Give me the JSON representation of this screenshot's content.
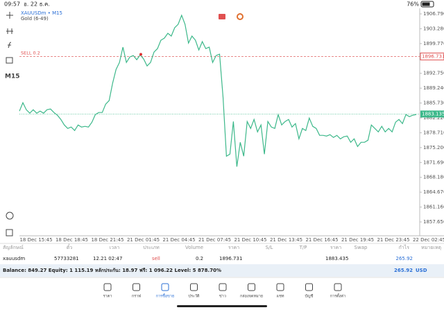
{
  "status_bar": {
    "time": "09:57",
    "date": "อ. 22 ธ.ค.",
    "battery": "76%"
  },
  "chart": {
    "type": "line",
    "symbol": "XAUUSDm • M15",
    "name": "Gold (6-49)",
    "timeframe": "M15",
    "color": "#3cb88a",
    "ylim": [
      1854.7,
      1908.1
    ],
    "yticks": [
      {
        "value": 1906.79,
        "label": "1906.790"
      },
      {
        "value": 1903.28,
        "label": "1903.280"
      },
      {
        "value": 1899.77,
        "label": "1899.770"
      },
      {
        "value": 1892.75,
        "label": "1892.750"
      },
      {
        "value": 1889.24,
        "label": "1889.240"
      },
      {
        "value": 1885.73,
        "label": "1885.730"
      },
      {
        "value": 1882.22,
        "label": "1882.220"
      },
      {
        "value": 1878.71,
        "label": "1878.710"
      },
      {
        "value": 1875.2,
        "label": "1875.200"
      },
      {
        "value": 1871.69,
        "label": "1871.690"
      },
      {
        "value": 1868.18,
        "label": "1868.180"
      },
      {
        "value": 1864.67,
        "label": "1864.670"
      },
      {
        "value": 1861.16,
        "label": "1861.160"
      },
      {
        "value": 1857.65,
        "label": "1857.650"
      }
    ],
    "xlabels": [
      "18 Dec 15:45",
      "18 Dec 18:45",
      "18 Dec 21:45",
      "21 Dec 01:45",
      "21 Dec 04:45",
      "21 Dec 07:45",
      "21 Dec 10:45",
      "21 Dec 13:45",
      "21 Dec 16:45",
      "21 Dec 19:45",
      "21 Dec 23:45",
      "22 Dec 02:45"
    ],
    "sell_line": {
      "value": 1896.731,
      "label": "SELL 0.2"
    },
    "bid_line": {
      "value": 1883.135
    },
    "values": [
      1883.83,
      1885.8,
      1884.16,
      1883.34,
      1884.16,
      1883.34,
      1883.83,
      1883.34,
      1884.16,
      1884.32,
      1883.5,
      1882.85,
      1881.86,
      1880.55,
      1879.73,
      1880.06,
      1879.24,
      1880.55,
      1880.06,
      1880.22,
      1880.06,
      1881.21,
      1883.01,
      1883.5,
      1883.5,
      1885.47,
      1886.29,
      1890.39,
      1893.67,
      1895.31,
      1898.92,
      1895.31,
      1896.62,
      1896.95,
      1895.97,
      1897.11,
      1896.13,
      1894.49,
      1895.31,
      1897.77,
      1898.59,
      1900.56,
      1901.05,
      1902.2,
      1901.54,
      1903.51,
      1904.33,
      1906.46,
      1904.33,
      1899.9,
      1901.54,
      1900.56,
      1898.26,
      1900.23,
      1898.59,
      1898.92,
      1895.31,
      1896.95,
      1897.28,
      1887.11,
      1873.17,
      1873.66,
      1881.37,
      1870.71,
      1876.45,
      1873.17,
      1881.37,
      1879.73,
      1881.86,
      1878.91,
      1880.55,
      1873.66,
      1881.37,
      1880.06,
      1879.73,
      1883.01,
      1880.55,
      1881.37,
      1881.86,
      1880.06,
      1880.88,
      1877.27,
      1879.73,
      1879.24,
      1882.19,
      1880.22,
      1879.73,
      1878.09,
      1878.09,
      1877.93,
      1878.25,
      1877.6,
      1878.09,
      1877.27,
      1877.76,
      1877.93,
      1876.45,
      1877.27,
      1875.47,
      1876.45,
      1876.45,
      1876.94,
      1880.55,
      1879.73,
      1878.91,
      1880.22,
      1878.91,
      1879.73,
      1878.91,
      1881.21,
      1881.86,
      1880.88,
      1883.01,
      1882.52,
      1882.85,
      1883.01
    ]
  },
  "table": {
    "headers": [
      "สัญลักษณ์",
      "ตั๋ว",
      "เวลา",
      "ประเภท",
      "Volume",
      "ราคา",
      "S/L",
      "T/P",
      "ราคา",
      "Swap",
      "กำไร",
      "หมายเหตุ"
    ],
    "row": [
      "xauusdm",
      "57733281",
      "12.21 02:47",
      "sell",
      "0.2",
      "1896.731",
      "",
      "",
      "1883.435",
      "",
      "265.92",
      ""
    ]
  },
  "summary": {
    "text": "Balance: 849.27 Equity: 1 115.19 หลักประกัน: 18.97 ฟรี: 1 096.22 Level: 5 878.70%",
    "profit": "265.92",
    "currency": "USD"
  },
  "nav": [
    "ราคา",
    "กราฟ",
    "การซื้อขาย",
    "ประวัติ",
    "ข่าว",
    "กล่องจดหมาย",
    "แชท",
    "บัญชี",
    "การตั้งค่า"
  ]
}
